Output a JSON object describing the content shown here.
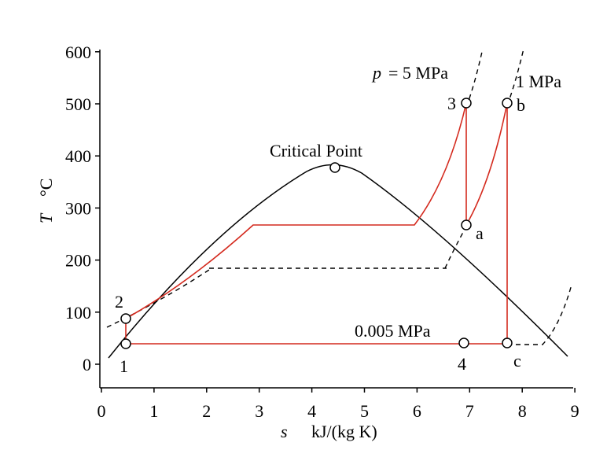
{
  "diagram": {
    "x_axis": {
      "ticks": [
        "0",
        "1",
        "2",
        "3",
        "4",
        "5",
        "6",
        "7",
        "8",
        "9"
      ],
      "label_symbol": "s",
      "label_unit": "kJ/(kg K)"
    },
    "y_axis": {
      "ticks": [
        "0",
        "100",
        "200",
        "300",
        "400",
        "500",
        "600"
      ],
      "label_symbol": "T",
      "label_unit": "°C"
    },
    "annotations": {
      "critical_point": "Critical Point",
      "pressure_5_symbol": "p",
      "pressure_5_value": "= 5 MPa",
      "pressure_1": "1 MPa",
      "pressure_low": "0.005 MPa"
    },
    "state_points": [
      {
        "label": "1",
        "s": 0.48,
        "T": 38
      },
      {
        "label": "2",
        "s": 0.48,
        "T": 88
      },
      {
        "label": "3",
        "s": 6.97,
        "T": 500
      },
      {
        "label": "4",
        "s": 6.97,
        "T": 40
      },
      {
        "label": "a",
        "s": 6.97,
        "T": 268
      },
      {
        "label": "b",
        "s": 7.78,
        "T": 500
      },
      {
        "label": "c",
        "s": 7.78,
        "T": 40
      }
    ],
    "critical": {
      "s": 4.44,
      "T": 374
    },
    "colors": {
      "cycle": "#d42a1e",
      "dome": "#000000"
    }
  }
}
